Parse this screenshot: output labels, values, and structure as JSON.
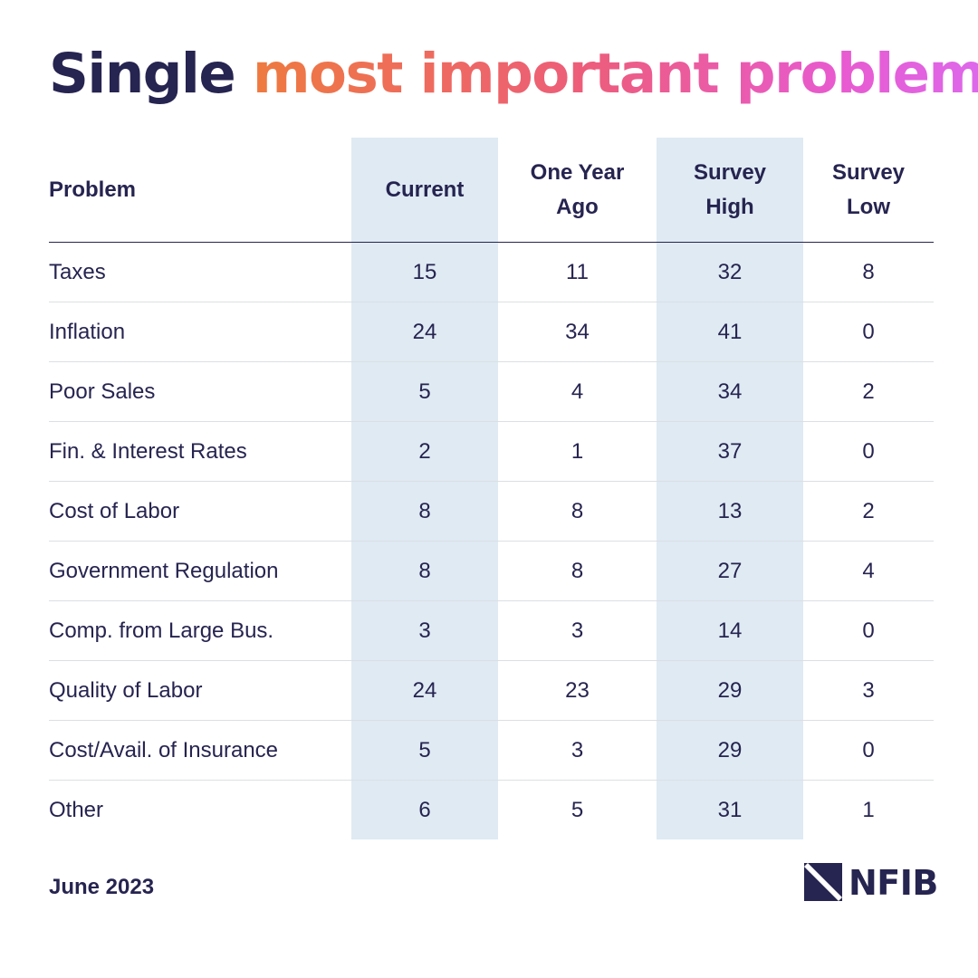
{
  "title": {
    "part1": "Single",
    "part2": "most important problem"
  },
  "chart_data": {
    "type": "table",
    "columns": [
      "Problem",
      "Current",
      "One Year Ago",
      "Survey High",
      "Survey Low"
    ],
    "rows": [
      {
        "problem": "Taxes",
        "current": "15",
        "one_year_ago": "11",
        "survey_high": "32",
        "survey_low": "8"
      },
      {
        "problem": "Inflation",
        "current": "24",
        "one_year_ago": "34",
        "survey_high": "41",
        "survey_low": "0"
      },
      {
        "problem": "Poor Sales",
        "current": "5",
        "one_year_ago": "4",
        "survey_high": "34",
        "survey_low": "2"
      },
      {
        "problem": "Fin. & Interest Rates",
        "current": "2",
        "one_year_ago": "1",
        "survey_high": "37",
        "survey_low": "0"
      },
      {
        "problem": "Cost of Labor",
        "current": "8",
        "one_year_ago": "8",
        "survey_high": "13",
        "survey_low": "2"
      },
      {
        "problem": "Government Regulation",
        "current": "8",
        "one_year_ago": "8",
        "survey_high": "27",
        "survey_low": "4"
      },
      {
        "problem": "Comp. from Large Bus.",
        "current": "3",
        "one_year_ago": "3",
        "survey_high": "14",
        "survey_low": "0"
      },
      {
        "problem": "Quality of Labor",
        "current": "24",
        "one_year_ago": "23",
        "survey_high": "29",
        "survey_low": "3"
      },
      {
        "problem": "Cost/Avail. of Insurance",
        "current": "5",
        "one_year_ago": "3",
        "survey_high": "29",
        "survey_low": "0"
      },
      {
        "problem": "Other",
        "current": "6",
        "one_year_ago": "5",
        "survey_high": "31",
        "survey_low": "1"
      }
    ],
    "highlighted_columns": [
      "Current",
      "Survey High"
    ]
  },
  "footer": {
    "date": "June 2023"
  },
  "logo": {
    "text": "NFIB"
  },
  "colors": {
    "text": "#262450",
    "highlight_band": "#dfeaf3",
    "title_gradient": [
      "#ee7a3f",
      "#ed5d7a",
      "#e85ad0",
      "#dd69ec"
    ],
    "row_divider": "#dcdfe3"
  }
}
